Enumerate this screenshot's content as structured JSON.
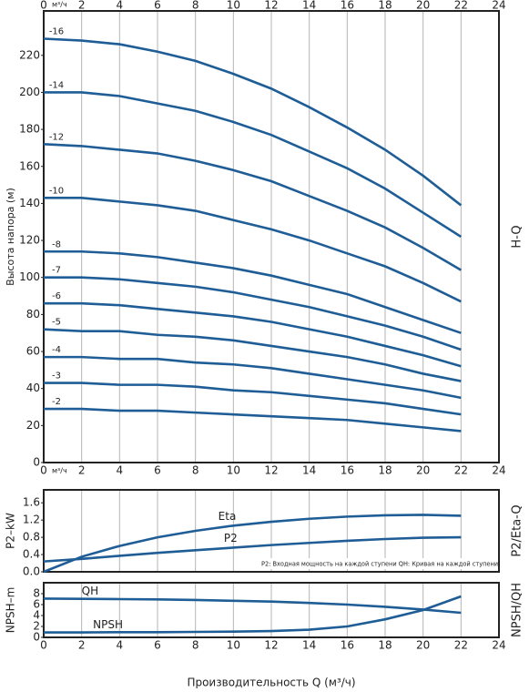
{
  "chart_data": [
    {
      "type": "line",
      "y_label": "Высота напора (м)",
      "side_label": "H-Q",
      "x_unit": "м³/ч",
      "x": [
        0,
        2,
        4,
        6,
        8,
        10,
        12,
        14,
        16,
        18,
        20,
        22
      ],
      "xlim": [
        0,
        24
      ],
      "xticks": [
        0,
        2,
        4,
        6,
        8,
        10,
        12,
        14,
        16,
        18,
        20,
        22,
        24
      ],
      "ylim": [
        0,
        244
      ],
      "yticks": [
        0,
        20,
        40,
        60,
        80,
        100,
        120,
        140,
        160,
        180,
        200,
        220
      ],
      "grid": true,
      "color": "#1f5d96",
      "series": [
        {
          "name": "-16",
          "values": [
            229,
            228,
            226,
            222,
            217,
            210,
            202,
            192,
            181,
            169,
            155,
            139
          ]
        },
        {
          "name": "-14",
          "values": [
            200,
            200,
            198,
            194,
            190,
            184,
            177,
            168,
            159,
            148,
            135,
            122
          ]
        },
        {
          "name": "-12",
          "values": [
            172,
            171,
            169,
            167,
            163,
            158,
            152,
            144,
            136,
            127,
            116,
            104
          ]
        },
        {
          "name": "-10",
          "values": [
            143,
            143,
            141,
            139,
            136,
            131,
            126,
            120,
            113,
            106,
            97,
            87
          ]
        },
        {
          "name": "-8",
          "values": [
            114,
            114,
            113,
            111,
            108,
            105,
            101,
            96,
            91,
            84,
            77,
            70
          ]
        },
        {
          "name": "-7",
          "values": [
            100,
            100,
            99,
            97,
            95,
            92,
            88,
            84,
            79,
            74,
            68,
            61
          ]
        },
        {
          "name": "-6",
          "values": [
            86,
            86,
            85,
            83,
            81,
            79,
            76,
            72,
            68,
            63,
            58,
            52
          ]
        },
        {
          "name": "-5",
          "values": [
            72,
            71,
            71,
            69,
            68,
            66,
            63,
            60,
            57,
            53,
            48,
            44
          ]
        },
        {
          "name": "-4",
          "values": [
            57,
            57,
            56,
            56,
            54,
            53,
            51,
            48,
            45,
            42,
            39,
            35
          ]
        },
        {
          "name": "-3",
          "values": [
            43,
            43,
            42,
            42,
            41,
            39,
            38,
            36,
            34,
            32,
            29,
            26
          ]
        },
        {
          "name": "-2",
          "values": [
            29,
            29,
            28,
            28,
            27,
            26,
            25,
            24,
            23,
            21,
            19,
            17
          ]
        }
      ]
    },
    {
      "type": "line",
      "y_label": "P2–kW",
      "side_label": "P2/Eta-Q",
      "note": "P2: Входная мощность на каждой ступени QH: Кривая на каждой ступени",
      "x": [
        0,
        2,
        4,
        6,
        8,
        10,
        12,
        14,
        16,
        18,
        20,
        22
      ],
      "xlim": [
        0,
        24
      ],
      "xticks": [
        0,
        2,
        4,
        6,
        8,
        10,
        12,
        14,
        16,
        18,
        20,
        22,
        24
      ],
      "ylim": [
        0,
        1.9
      ],
      "yticks": [
        {
          "value": 0,
          "label": "0.0"
        },
        0.4,
        0.8,
        1.2,
        1.6
      ],
      "grid": true,
      "color": "#1f5d96",
      "series": [
        {
          "name": "Eta",
          "values": [
            0.0,
            0.35,
            0.6,
            0.8,
            0.95,
            1.07,
            1.16,
            1.23,
            1.28,
            1.31,
            1.32,
            1.3
          ]
        },
        {
          "name": "P2",
          "values": [
            0.24,
            0.3,
            0.37,
            0.44,
            0.5,
            0.56,
            0.62,
            0.67,
            0.72,
            0.76,
            0.79,
            0.8
          ]
        }
      ]
    },
    {
      "type": "line",
      "y_label": "NPSH–m",
      "side_label": "NPSH/QH",
      "x_label": "Производительность Q (м³/ч)",
      "x": [
        0,
        2,
        4,
        6,
        8,
        10,
        12,
        14,
        16,
        18,
        20,
        22
      ],
      "xlim": [
        0,
        24
      ],
      "xticks": [
        0,
        2,
        4,
        6,
        8,
        10,
        12,
        14,
        16,
        18,
        20,
        22,
        24
      ],
      "ylim": [
        0,
        10
      ],
      "yticks": [
        0,
        2,
        4,
        6,
        8
      ],
      "grid": true,
      "color": "#1f5d96",
      "series": [
        {
          "name": "QH",
          "values": [
            7.1,
            7.05,
            7.0,
            6.95,
            6.85,
            6.7,
            6.55,
            6.3,
            6.0,
            5.6,
            5.1,
            4.5
          ]
        },
        {
          "name": "NPSH",
          "values": [
            0.9,
            0.9,
            0.95,
            0.95,
            1.0,
            1.05,
            1.15,
            1.4,
            2.0,
            3.3,
            5.0,
            7.5
          ]
        }
      ]
    }
  ]
}
